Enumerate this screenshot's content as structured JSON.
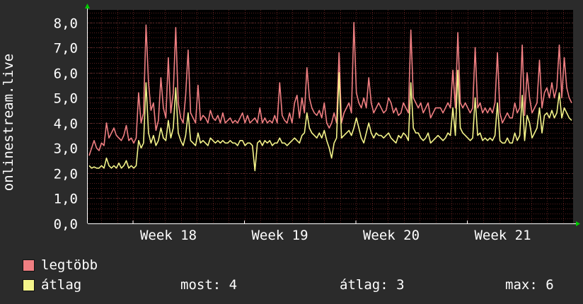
{
  "chart_data": {
    "type": "line",
    "ylabel": "onlinestream.live",
    "ylim": [
      0,
      8.5
    ],
    "yticks": [
      "0,0",
      "1,0",
      "2,0",
      "3,0",
      "4,0",
      "5,0",
      "6,0",
      "7,0",
      "8,0"
    ],
    "xticks": [
      "Week 18",
      "Week 19",
      "Week 20",
      "Week 21"
    ],
    "grid": true,
    "series": [
      {
        "name": "legtöbb",
        "color": "#f07f82",
        "values": [
          2.7,
          3.0,
          3.3,
          3.0,
          2.9,
          3.2,
          3.1,
          4.0,
          3.4,
          3.6,
          3.8,
          3.5,
          3.4,
          3.3,
          3.5,
          3.9,
          3.3,
          3.4,
          3.2,
          3.4,
          5.2,
          4.0,
          4.4,
          7.9,
          5.6,
          4.5,
          4.8,
          3.7,
          4.1,
          5.8,
          4.6,
          4.2,
          6.6,
          4.4,
          5.2,
          7.8,
          4.8,
          4.2,
          4.0,
          5.1,
          6.9,
          4.4,
          4.2,
          4.0,
          5.5,
          4.1,
          4.3,
          4.2,
          4.0,
          4.5,
          4.2,
          4.1,
          4.3,
          4.0,
          4.4,
          4.0,
          4.1,
          4.2,
          4.0,
          4.1,
          4.0,
          4.2,
          4.4,
          4.0,
          4.3,
          4.0,
          4.1,
          4.2,
          4.0,
          4.6,
          4.0,
          4.2,
          4.0,
          4.1,
          4.0,
          4.3,
          4.0,
          5.6,
          4.3,
          4.1,
          4.0,
          4.4,
          4.0,
          4.8,
          5.1,
          4.2,
          5.0,
          4.4,
          6.2,
          5.0,
          4.6,
          4.4,
          4.3,
          4.5,
          4.2,
          4.8,
          4.0,
          3.8,
          4.0,
          4.4,
          4.0,
          6.8,
          4.0,
          4.4,
          4.6,
          4.8,
          4.4,
          8.0,
          5.2,
          4.8,
          4.6,
          5.0,
          4.6,
          5.8,
          4.8,
          4.4,
          4.6,
          4.8,
          4.6,
          4.4,
          4.5,
          5.0,
          4.8,
          4.4,
          4.6,
          4.3,
          4.4,
          4.8,
          4.6,
          4.4,
          7.7,
          5.0,
          4.8,
          4.6,
          4.8,
          4.4,
          4.6,
          4.8,
          4.2,
          4.4,
          4.6,
          4.6,
          4.6,
          4.4,
          4.6,
          4.8,
          4.6,
          6.1,
          4.6,
          7.6,
          4.8,
          4.6,
          4.8,
          4.6,
          4.4,
          4.6,
          7.0,
          4.6,
          4.8,
          4.4,
          4.6,
          4.4,
          4.6,
          4.4,
          4.8,
          6.8,
          4.4,
          4.0,
          4.2,
          4.4,
          4.2,
          4.2,
          4.8,
          4.4,
          4.6,
          7.1,
          4.3,
          6.0,
          5.0,
          4.4,
          4.6,
          4.8,
          6.5,
          4.6,
          5.2,
          5.4,
          5.0,
          5.6,
          5.0,
          5.4,
          7.1,
          5.0,
          6.6,
          5.4,
          5.0,
          4.8
        ],
        "color_note": "red"
      },
      {
        "name": "átlag",
        "color": "#f4f48a",
        "values": [
          2.3,
          2.2,
          2.25,
          2.2,
          2.2,
          2.3,
          2.2,
          2.6,
          2.3,
          2.2,
          2.3,
          2.2,
          2.4,
          2.2,
          2.3,
          2.5,
          2.2,
          2.3,
          2.2,
          2.3,
          3.3,
          3.0,
          3.2,
          5.6,
          3.6,
          3.2,
          3.5,
          3.1,
          3.3,
          3.8,
          3.4,
          3.3,
          4.1,
          3.4,
          3.8,
          5.4,
          3.6,
          3.3,
          3.1,
          3.5,
          4.4,
          3.3,
          3.2,
          3.1,
          3.6,
          3.2,
          3.3,
          3.2,
          3.1,
          3.4,
          3.3,
          3.2,
          3.3,
          3.2,
          3.3,
          3.2,
          3.2,
          3.3,
          3.2,
          3.2,
          3.1,
          3.3,
          3.3,
          3.1,
          3.2,
          3.2,
          3.1,
          2.1,
          3.2,
          3.3,
          3.1,
          3.3,
          3.2,
          3.3,
          3.1,
          3.2,
          3.2,
          3.4,
          3.2,
          3.2,
          3.1,
          3.2,
          3.3,
          3.4,
          3.3,
          3.2,
          3.5,
          3.6,
          4.4,
          3.8,
          3.6,
          3.5,
          3.4,
          3.6,
          3.4,
          3.7,
          3.3,
          3.0,
          2.6,
          3.2,
          3.4,
          6.0,
          3.4,
          3.5,
          3.6,
          3.7,
          3.5,
          3.8,
          4.2,
          3.8,
          3.4,
          3.2,
          3.6,
          4.0,
          3.6,
          3.4,
          3.6,
          3.5,
          3.5,
          3.4,
          3.5,
          3.6,
          3.4,
          3.3,
          3.2,
          3.5,
          3.4,
          3.6,
          3.5,
          3.3,
          5.6,
          3.8,
          3.6,
          3.6,
          3.4,
          3.3,
          3.4,
          3.6,
          3.2,
          3.3,
          3.4,
          3.5,
          3.4,
          3.3,
          3.4,
          3.6,
          3.5,
          4.6,
          3.5,
          6.1,
          3.8,
          3.6,
          3.5,
          3.4,
          3.3,
          3.4,
          5.0,
          3.5,
          3.6,
          3.3,
          3.4,
          3.3,
          3.4,
          3.3,
          3.5,
          4.8,
          3.3,
          3.2,
          3.2,
          3.4,
          3.2,
          3.2,
          3.6,
          3.3,
          3.5,
          5.1,
          3.3,
          4.3,
          4.0,
          3.4,
          3.6,
          3.8,
          4.6,
          3.6,
          4.3,
          4.4,
          4.2,
          4.5,
          4.2,
          4.4,
          5.2,
          4.2,
          4.6,
          4.4,
          4.2,
          4.1
        ],
        "color_note": "yellow"
      }
    ]
  },
  "legend": {
    "items": [
      {
        "label": "legtöbb",
        "color": "#f07f82"
      },
      {
        "label": "átlag",
        "color": "#f4f48a"
      }
    ],
    "now": "most: 4",
    "avg": "átlag: 3",
    "max": "max: 6"
  },
  "colors": {
    "background": "#2b2b2b",
    "plot_background": "#000000",
    "grid_minor": "#5a1f1f",
    "grid_major": "#404040",
    "axis": "#ffffff",
    "arrow": "#00cc00"
  }
}
